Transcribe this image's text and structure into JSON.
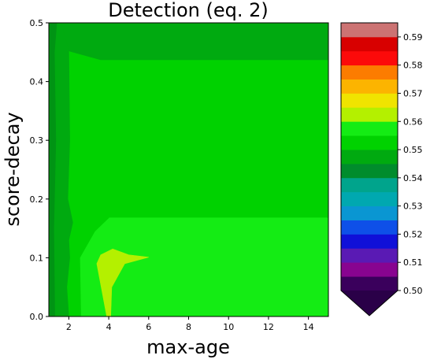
{
  "chart_data": {
    "type": "heatmap",
    "title": "Detection (eq. 2)",
    "xlabel": "max-age",
    "ylabel": "score-decay",
    "xlim": [
      1,
      15
    ],
    "ylim": [
      0.0,
      0.5
    ],
    "x_ticks": [
      "2",
      "4",
      "6",
      "8",
      "10",
      "12",
      "14"
    ],
    "y_ticks": [
      "0.0",
      "0.1",
      "0.2",
      "0.3",
      "0.4",
      "0.5"
    ],
    "grid": false,
    "colorbar": {
      "placement": "right",
      "extend": "min",
      "tick_labels": [
        "0.50",
        "0.51",
        "0.52",
        "0.53",
        "0.54",
        "0.55",
        "0.56",
        "0.57",
        "0.58",
        "0.59"
      ],
      "levels": [
        {
          "min": 0.5,
          "max": 0.505,
          "color": "#3a005c"
        },
        {
          "min": 0.505,
          "max": 0.51,
          "color": "#880490"
        },
        {
          "min": 0.51,
          "max": 0.515,
          "color": "#5a1ab4"
        },
        {
          "min": 0.515,
          "max": 0.52,
          "color": "#1010d8"
        },
        {
          "min": 0.52,
          "max": 0.525,
          "color": "#0e50e8"
        },
        {
          "min": 0.525,
          "max": 0.53,
          "color": "#0a96d2"
        },
        {
          "min": 0.53,
          "max": 0.535,
          "color": "#00a8b0"
        },
        {
          "min": 0.535,
          "max": 0.54,
          "color": "#00a48c"
        },
        {
          "min": 0.54,
          "max": 0.545,
          "color": "#008c2c"
        },
        {
          "min": 0.545,
          "max": 0.55,
          "color": "#00aa10"
        },
        {
          "min": 0.55,
          "max": 0.555,
          "color": "#00d200"
        },
        {
          "min": 0.555,
          "max": 0.56,
          "color": "#14ec14"
        },
        {
          "min": 0.56,
          "max": 0.565,
          "color": "#b4f000"
        },
        {
          "min": 0.565,
          "max": 0.57,
          "color": "#f0e400"
        },
        {
          "min": 0.57,
          "max": 0.575,
          "color": "#fcb400"
        },
        {
          "min": 0.575,
          "max": 0.58,
          "color": "#fc7c00"
        },
        {
          "min": 0.58,
          "max": 0.585,
          "color": "#fc0a0a"
        },
        {
          "min": 0.585,
          "max": 0.59,
          "color": "#d80000"
        },
        {
          "min": 0.59,
          "max": 0.595,
          "color": "#cc7373"
        }
      ],
      "extend_color": "#2a0048"
    },
    "regions": [
      {
        "name": "base",
        "level": 0.552,
        "color": "#00d200",
        "polygon": [
          [
            1,
            0
          ],
          [
            15,
            0
          ],
          [
            15,
            0.5
          ],
          [
            1,
            0.5
          ]
        ]
      },
      {
        "name": "upper-band",
        "level": 0.548,
        "color": "#00aa10",
        "polygon": [
          [
            1,
            0.5
          ],
          [
            15,
            0.5
          ],
          [
            15,
            0.437
          ],
          [
            3.6,
            0.437
          ],
          [
            2.0,
            0.452
          ],
          [
            1.6,
            0.5
          ]
        ]
      },
      {
        "name": "left-strip-middle",
        "level": 0.548,
        "color": "#00aa10",
        "polygon": [
          [
            1.6,
            0.5
          ],
          [
            2.0,
            0.452
          ],
          [
            2.05,
            0.3
          ],
          [
            1.95,
            0.2
          ],
          [
            2.2,
            0.16
          ],
          [
            2.0,
            0.13
          ],
          [
            2.05,
            0.1
          ],
          [
            1.9,
            0.05
          ],
          [
            2.0,
            0.0
          ],
          [
            1,
            0.0
          ],
          [
            1,
            0.5
          ]
        ]
      },
      {
        "name": "lower-right-region",
        "level": 0.557,
        "color": "#14ec14",
        "polygon": [
          [
            2.0,
            0.0
          ],
          [
            2.6,
            0.0
          ],
          [
            2.55,
            0.1
          ],
          [
            3.3,
            0.145
          ],
          [
            4.0,
            0.168
          ],
          [
            15,
            0.168
          ],
          [
            15,
            0.0
          ]
        ]
      },
      {
        "name": "lower-left-notch",
        "level": 0.552,
        "color": "#00d200",
        "polygon": [
          [
            2.0,
            0.0
          ],
          [
            2.6,
            0.0
          ],
          [
            2.55,
            0.1
          ],
          [
            3.3,
            0.145
          ],
          [
            4.0,
            0.168
          ],
          [
            3.5,
            0.168
          ],
          [
            2.8,
            0.14
          ],
          [
            2.3,
            0.11
          ],
          [
            2.2,
            0.07
          ],
          [
            2.1,
            0.03
          ]
        ]
      },
      {
        "name": "left-strip-dark-edge",
        "level": 0.544,
        "color": "#009414",
        "polygon": [
          [
            1,
            0.0
          ],
          [
            1.3,
            0.0
          ],
          [
            1.25,
            0.15
          ],
          [
            1.35,
            0.3
          ],
          [
            1.28,
            0.45
          ],
          [
            1.4,
            0.5
          ],
          [
            1,
            0.5
          ]
        ]
      },
      {
        "name": "peak",
        "level": 0.562,
        "color": "#b4f000",
        "polygon": [
          [
            3.9,
            0.0
          ],
          [
            4.1,
            0.0
          ],
          [
            4.15,
            0.05
          ],
          [
            4.8,
            0.09
          ],
          [
            6.0,
            0.101
          ],
          [
            5.0,
            0.105
          ],
          [
            4.2,
            0.115
          ],
          [
            3.6,
            0.105
          ],
          [
            3.4,
            0.09
          ]
        ]
      }
    ]
  }
}
